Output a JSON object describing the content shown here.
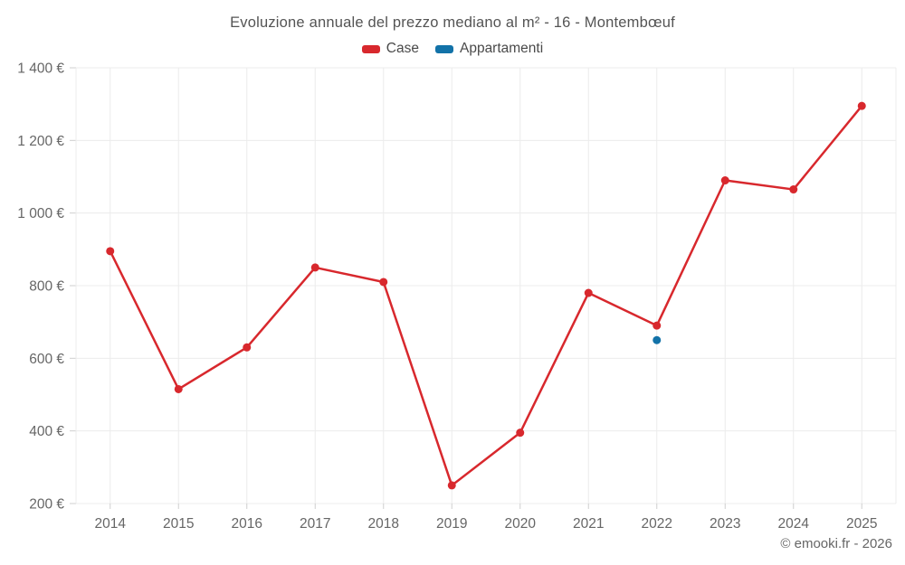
{
  "title": "Evoluzione annuale del prezzo mediano al m² - 16 - Montembœuf",
  "legend": {
    "items": [
      {
        "label": "Case",
        "color": "#d8282d"
      },
      {
        "label": "Appartamenti",
        "color": "#1272a8"
      }
    ]
  },
  "footer": {
    "credit": "© emooki.fr - 2026"
  },
  "colors": {
    "case_red": "#d8282d",
    "appartamenti_blue": "#1272a8",
    "grid": "#ececec",
    "tick": "#cfcfcf",
    "axis_text": "#666666"
  },
  "chart_data": {
    "type": "line",
    "title": "Evoluzione annuale del prezzo mediano al m² - 16 - Montembœuf",
    "x": [
      2014,
      2015,
      2016,
      2017,
      2018,
      2019,
      2020,
      2021,
      2022,
      2023,
      2024,
      2025
    ],
    "series": [
      {
        "name": "Case",
        "color": "#d8282d",
        "values": [
          895,
          515,
          630,
          850,
          810,
          250,
          395,
          780,
          690,
          1090,
          1065,
          1295
        ]
      },
      {
        "name": "Appartamenti",
        "color": "#1272a8",
        "values": [
          null,
          null,
          null,
          null,
          null,
          null,
          null,
          null,
          650,
          null,
          null,
          null
        ]
      }
    ],
    "xlabel": "",
    "ylabel": "",
    "ylim": [
      200,
      1400
    ],
    "ytick_values": [
      200,
      400,
      600,
      800,
      1000,
      1200,
      1400
    ],
    "ytick_labels": [
      "200 €",
      "400 €",
      "600 €",
      "800 €",
      "1 000 €",
      "1 200 €",
      "1 400 €"
    ],
    "grid": true,
    "legend_position": "top"
  }
}
